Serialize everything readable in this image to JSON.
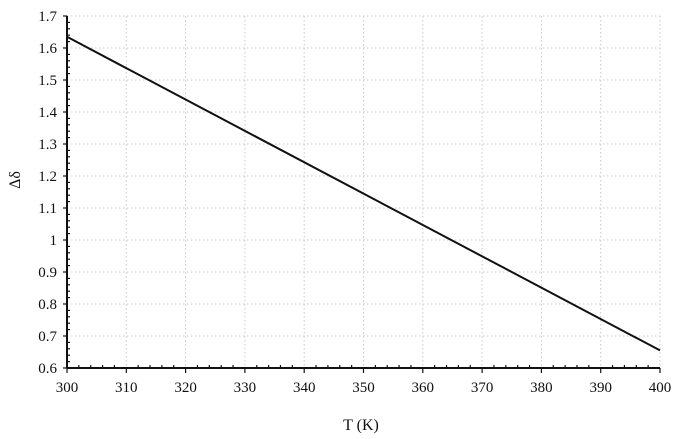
{
  "chart_data": {
    "type": "line",
    "xlabel": "T (K)",
    "ylabel": "Δδ",
    "xlim": [
      300,
      400
    ],
    "ylim": [
      0.6,
      1.7
    ],
    "x_ticks": [
      300,
      310,
      320,
      330,
      340,
      350,
      360,
      370,
      380,
      390,
      400
    ],
    "y_ticks": [
      0.6,
      0.7,
      0.8,
      0.9,
      1,
      1.1,
      1.2,
      1.3,
      1.4,
      1.5,
      1.6,
      1.7
    ],
    "x_tick_labels": [
      "300",
      "310",
      "320",
      "330",
      "340",
      "350",
      "360",
      "370",
      "380",
      "390",
      "400"
    ],
    "y_tick_labels": [
      "0.6",
      "0.7",
      "0.8",
      "0.9",
      "1",
      "1.1",
      "1.2",
      "1.3",
      "1.4",
      "1.5",
      "1.6",
      "1.7"
    ],
    "grid": true,
    "series": [
      {
        "color": "#111111",
        "x": [
          300,
          400
        ],
        "y": [
          1.635,
          0.655
        ]
      }
    ]
  }
}
